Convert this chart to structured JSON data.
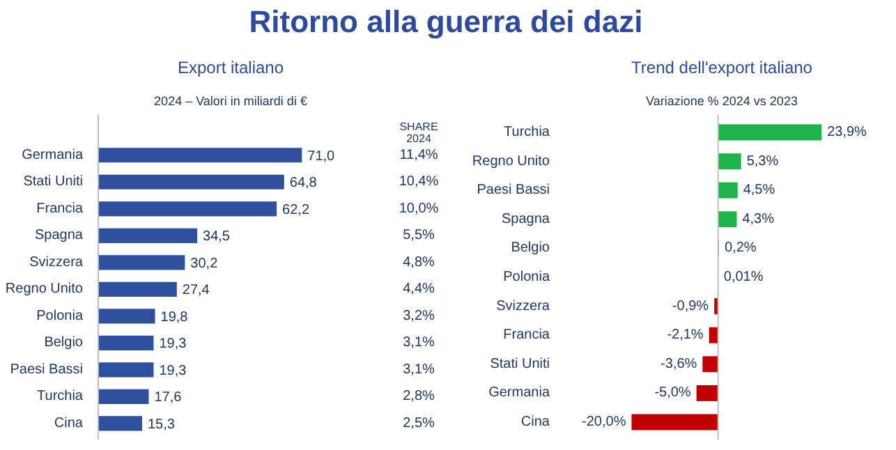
{
  "chart_data": [
    {
      "type": "other",
      "title": "Ritorno alla guerra dei dazi"
    },
    {
      "type": "bar",
      "orientation": "horizontal",
      "title": "Export italiano",
      "subtitle": "2024 – Valori in miliardi di €",
      "categories": [
        "Germania",
        "Stati Uniti",
        "Francia",
        "Spagna",
        "Svizzera",
        "Regno Unito",
        "Polonia",
        "Belgio",
        "Paesi Bassi",
        "Turchia",
        "Cina"
      ],
      "values": [
        71.0,
        64.8,
        62.2,
        34.5,
        30.2,
        27.4,
        19.8,
        19.3,
        19.3,
        17.6,
        15.3
      ],
      "value_labels": [
        "71,0",
        "64,8",
        "62,2",
        "34,5",
        "30,2",
        "27,4",
        "19,8",
        "19,3",
        "19,3",
        "17,6",
        "15,3"
      ],
      "color": "#2f4f9f",
      "tick_labels": "y",
      "annotations": [
        "SHARE 2024",
        "11,4%",
        "10,4%",
        "10,0%",
        "5,5%",
        "4,8%",
        "4,4%",
        "3,2%",
        "3,1%",
        "3,1%",
        "2,8%",
        "2,5%"
      ]
    },
    {
      "type": "bar",
      "orientation": "horizontal",
      "title": "Trend dell'export italiano",
      "subtitle": "Variazione % 2024 vs 2023",
      "categories": [
        "Turchia",
        "Regno Unito",
        "Paesi Bassi",
        "Spagna",
        "Belgio",
        "Polonia",
        "Svizzera",
        "Francia",
        "Stati Uniti",
        "Germania",
        "Cina"
      ],
      "values": [
        23.9,
        5.3,
        4.5,
        4.3,
        0.2,
        0.01,
        -0.9,
        -2.1,
        -3.6,
        -5.0,
        -20.0
      ],
      "value_labels": [
        "23,9%",
        "5,3%",
        "4,5%",
        "4,3%",
        "0,2%",
        "0,01%",
        "-0,9%",
        "-2,1%",
        "-3,6%",
        "-5,0%",
        "-20,0%"
      ],
      "colors": [
        "#1db34a",
        "#1db34a",
        "#1db34a",
        "#1db34a",
        "#1db34a",
        "#1db34a",
        "#c00000",
        "#c00000",
        "#c00000",
        "#c00000",
        "#c00000"
      ],
      "tick_labels": "y",
      "ref_lines": [
        {
          "axis": "x",
          "value": 0,
          "color": "#bfbfbf"
        }
      ]
    }
  ]
}
